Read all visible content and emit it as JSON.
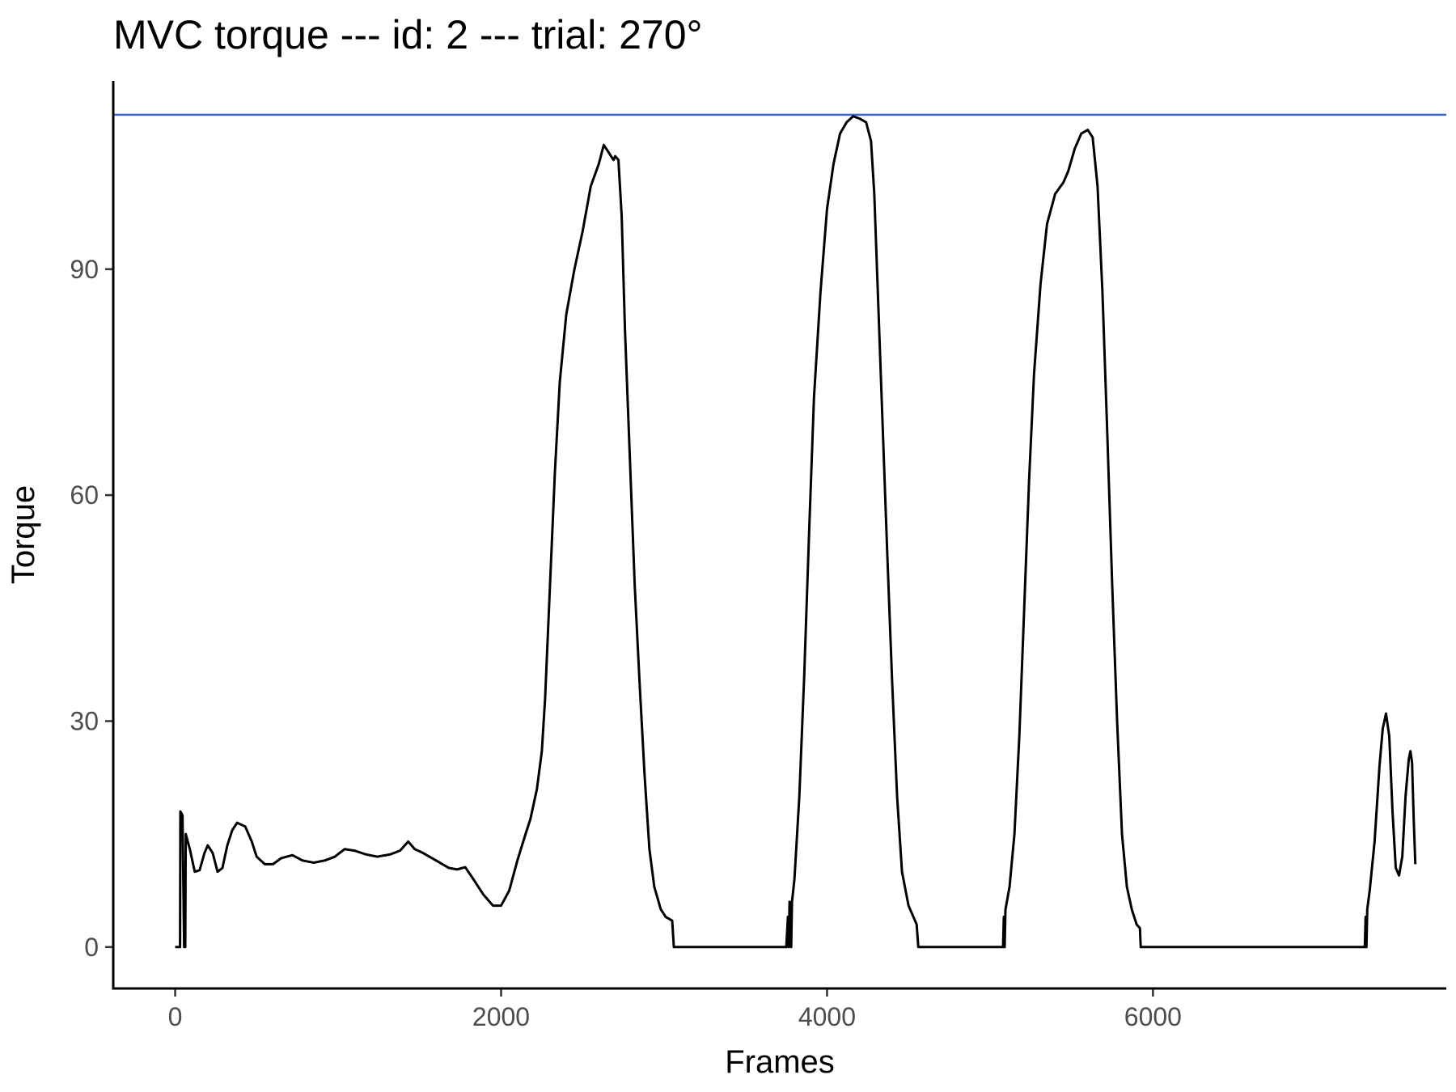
{
  "chart_data": {
    "type": "line",
    "title": "MVC torque --- id: 2 --- trial: 270°",
    "xlabel": "Frames",
    "ylabel": "Torque",
    "xlim": [
      -380,
      7800
    ],
    "ylim": [
      -5.5,
      115
    ],
    "x_ticks": [
      0,
      2000,
      4000,
      6000
    ],
    "y_ticks": [
      0,
      30,
      60,
      90
    ],
    "grid": false,
    "colors": {
      "series": "#000000",
      "reference": "#3a67d6"
    },
    "reference_line": {
      "y": 110.5
    },
    "series": [
      {
        "points": [
          [
            0,
            0
          ],
          [
            30,
            0
          ],
          [
            32,
            18
          ],
          [
            45,
            17.5
          ],
          [
            55,
            0
          ],
          [
            62,
            0
          ],
          [
            65,
            15
          ],
          [
            90,
            13
          ],
          [
            120,
            10
          ],
          [
            150,
            10.2
          ],
          [
            180,
            12.5
          ],
          [
            200,
            13.5
          ],
          [
            230,
            12.5
          ],
          [
            260,
            10
          ],
          [
            290,
            10.5
          ],
          [
            320,
            13.5
          ],
          [
            350,
            15.5
          ],
          [
            380,
            16.5
          ],
          [
            430,
            16
          ],
          [
            470,
            14
          ],
          [
            500,
            12
          ],
          [
            550,
            11
          ],
          [
            600,
            11
          ],
          [
            650,
            11.8
          ],
          [
            720,
            12.2
          ],
          [
            780,
            11.5
          ],
          [
            850,
            11.2
          ],
          [
            920,
            11.5
          ],
          [
            980,
            12
          ],
          [
            1040,
            13
          ],
          [
            1100,
            12.8
          ],
          [
            1170,
            12.3
          ],
          [
            1240,
            12
          ],
          [
            1320,
            12.3
          ],
          [
            1380,
            12.8
          ],
          [
            1430,
            14
          ],
          [
            1470,
            13
          ],
          [
            1520,
            12.5
          ],
          [
            1600,
            11.5
          ],
          [
            1680,
            10.5
          ],
          [
            1730,
            10.3
          ],
          [
            1780,
            10.6
          ],
          [
            1830,
            9
          ],
          [
            1890,
            7
          ],
          [
            1950,
            5.5
          ],
          [
            2000,
            5.5
          ],
          [
            2050,
            7.5
          ],
          [
            2100,
            11.5
          ],
          [
            2150,
            15
          ],
          [
            2180,
            17
          ],
          [
            2220,
            21
          ],
          [
            2250,
            26
          ],
          [
            2270,
            33
          ],
          [
            2300,
            48
          ],
          [
            2330,
            63
          ],
          [
            2360,
            75
          ],
          [
            2400,
            84
          ],
          [
            2450,
            90
          ],
          [
            2500,
            95
          ],
          [
            2550,
            101
          ],
          [
            2600,
            104
          ],
          [
            2630,
            106.5
          ],
          [
            2660,
            105.5
          ],
          [
            2690,
            104.5
          ],
          [
            2700,
            105
          ],
          [
            2720,
            104.5
          ],
          [
            2740,
            97
          ],
          [
            2760,
            82
          ],
          [
            2790,
            65
          ],
          [
            2820,
            48
          ],
          [
            2850,
            35
          ],
          [
            2880,
            23
          ],
          [
            2910,
            13
          ],
          [
            2940,
            8
          ],
          [
            2980,
            5
          ],
          [
            3010,
            4
          ],
          [
            3050,
            3.5
          ],
          [
            3060,
            0
          ],
          [
            3750,
            0
          ],
          [
            3760,
            4
          ],
          [
            3765,
            0
          ],
          [
            3770,
            6
          ],
          [
            3780,
            0
          ],
          [
            3785,
            6
          ],
          [
            3800,
            9
          ],
          [
            3830,
            20
          ],
          [
            3860,
            36
          ],
          [
            3890,
            55
          ],
          [
            3920,
            73
          ],
          [
            3960,
            87
          ],
          [
            4000,
            98
          ],
          [
            4040,
            104
          ],
          [
            4080,
            108
          ],
          [
            4120,
            109.5
          ],
          [
            4160,
            110.3
          ],
          [
            4200,
            110
          ],
          [
            4240,
            109.5
          ],
          [
            4270,
            107
          ],
          [
            4290,
            100
          ],
          [
            4310,
            88
          ],
          [
            4340,
            70
          ],
          [
            4370,
            52
          ],
          [
            4400,
            35
          ],
          [
            4430,
            20
          ],
          [
            4460,
            10
          ],
          [
            4500,
            5.5
          ],
          [
            4540,
            3.5
          ],
          [
            4550,
            3
          ],
          [
            4560,
            0
          ],
          [
            5080,
            0
          ],
          [
            5085,
            4
          ],
          [
            5090,
            0
          ],
          [
            5095,
            5
          ],
          [
            5120,
            8
          ],
          [
            5150,
            15
          ],
          [
            5180,
            28
          ],
          [
            5210,
            45
          ],
          [
            5240,
            62
          ],
          [
            5270,
            76
          ],
          [
            5310,
            88
          ],
          [
            5350,
            96
          ],
          [
            5400,
            100
          ],
          [
            5450,
            101.5
          ],
          [
            5480,
            103
          ],
          [
            5520,
            106
          ],
          [
            5560,
            108
          ],
          [
            5600,
            108.5
          ],
          [
            5630,
            107.5
          ],
          [
            5660,
            101
          ],
          [
            5690,
            87
          ],
          [
            5720,
            68
          ],
          [
            5750,
            48
          ],
          [
            5780,
            30
          ],
          [
            5810,
            15
          ],
          [
            5840,
            8
          ],
          [
            5870,
            5
          ],
          [
            5900,
            3
          ],
          [
            5920,
            2.5
          ],
          [
            5925,
            0
          ],
          [
            7300,
            0
          ],
          [
            7305,
            4
          ],
          [
            7310,
            0
          ],
          [
            7315,
            5
          ],
          [
            7330,
            7.5
          ],
          [
            7360,
            14
          ],
          [
            7390,
            24
          ],
          [
            7410,
            29
          ],
          [
            7430,
            31
          ],
          [
            7450,
            28
          ],
          [
            7470,
            18
          ],
          [
            7490,
            10.5
          ],
          [
            7510,
            9.5
          ],
          [
            7530,
            12
          ],
          [
            7550,
            20
          ],
          [
            7570,
            25
          ],
          [
            7580,
            26
          ],
          [
            7590,
            24.5
          ],
          [
            7600,
            17
          ],
          [
            7610,
            11
          ]
        ]
      }
    ]
  }
}
